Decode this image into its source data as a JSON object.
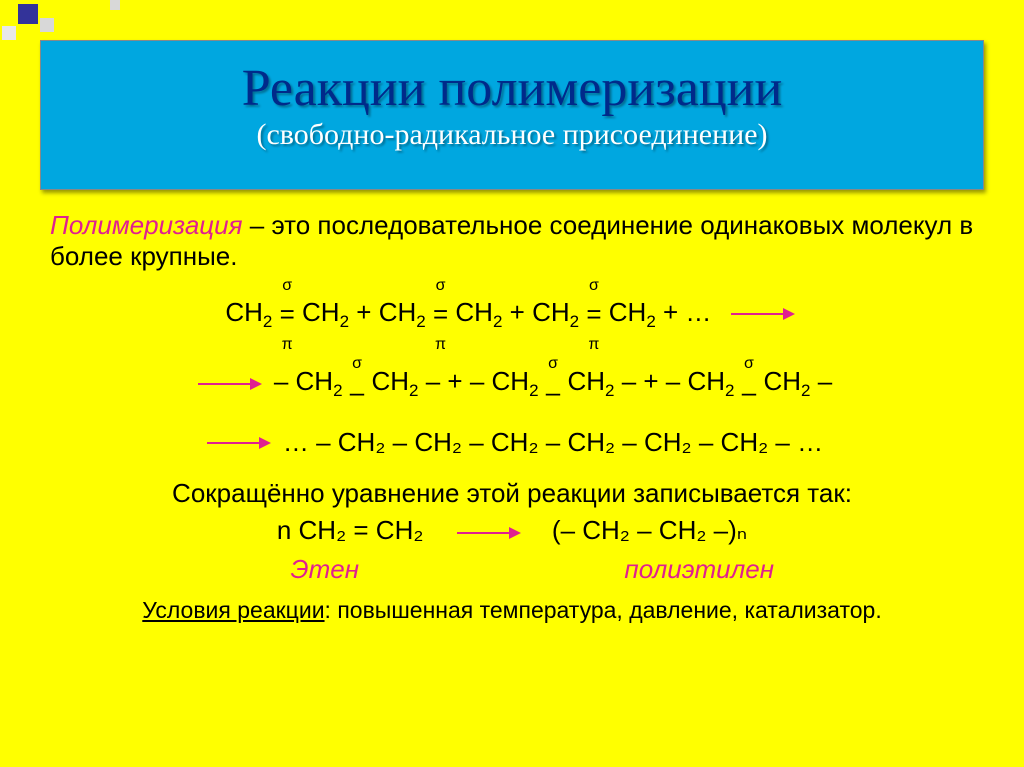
{
  "colors": {
    "slide_bg": "#ffff00",
    "title_bg": "#00a7e0",
    "title_text": "#002a8a",
    "subtitle_text": "#ffffff",
    "accent": "#e02090",
    "body_text": "#000000",
    "deco_dark": "#333399",
    "deco_light": "#d8d8d8"
  },
  "title": {
    "main": "Реакции полимеризации",
    "sub": "(свободно-радикальное присоединение)"
  },
  "definition": {
    "term": "Полимеризация",
    "text": " – это последовательное соединение одинаковых молекул в более крупные."
  },
  "equations": {
    "line1": {
      "sigma": "σ",
      "pi": "π",
      "unit": "CH",
      "sub": "2",
      "joiner": " + ",
      "trail": " +  …"
    },
    "line2": {
      "sigma": "σ",
      "prefix": "– CH",
      "sub": "2",
      "dash": " – ",
      "joiner": " + "
    },
    "line3_text": "… – CH₂ – CH₂ – CH₂ – CH₂ – CH₂ – CH₂ – …",
    "short_intro": "Сокращённо уравнение этой реакции записывается так:",
    "short_lhs": "n CH₂ = CH₂",
    "short_rhs": "(– CH₂ – CH₂ –)ₙ",
    "ethene_label": "Этен",
    "poly_label": "полиэтилен"
  },
  "conditions": {
    "label": "Условия реакции",
    "text": ": повышенная температура, давление, катализатор."
  },
  "typography": {
    "title_fontsize": 52,
    "subtitle_fontsize": 30,
    "body_fontsize": 26,
    "subscript_fontsize": 17,
    "conditions_fontsize": 23
  }
}
